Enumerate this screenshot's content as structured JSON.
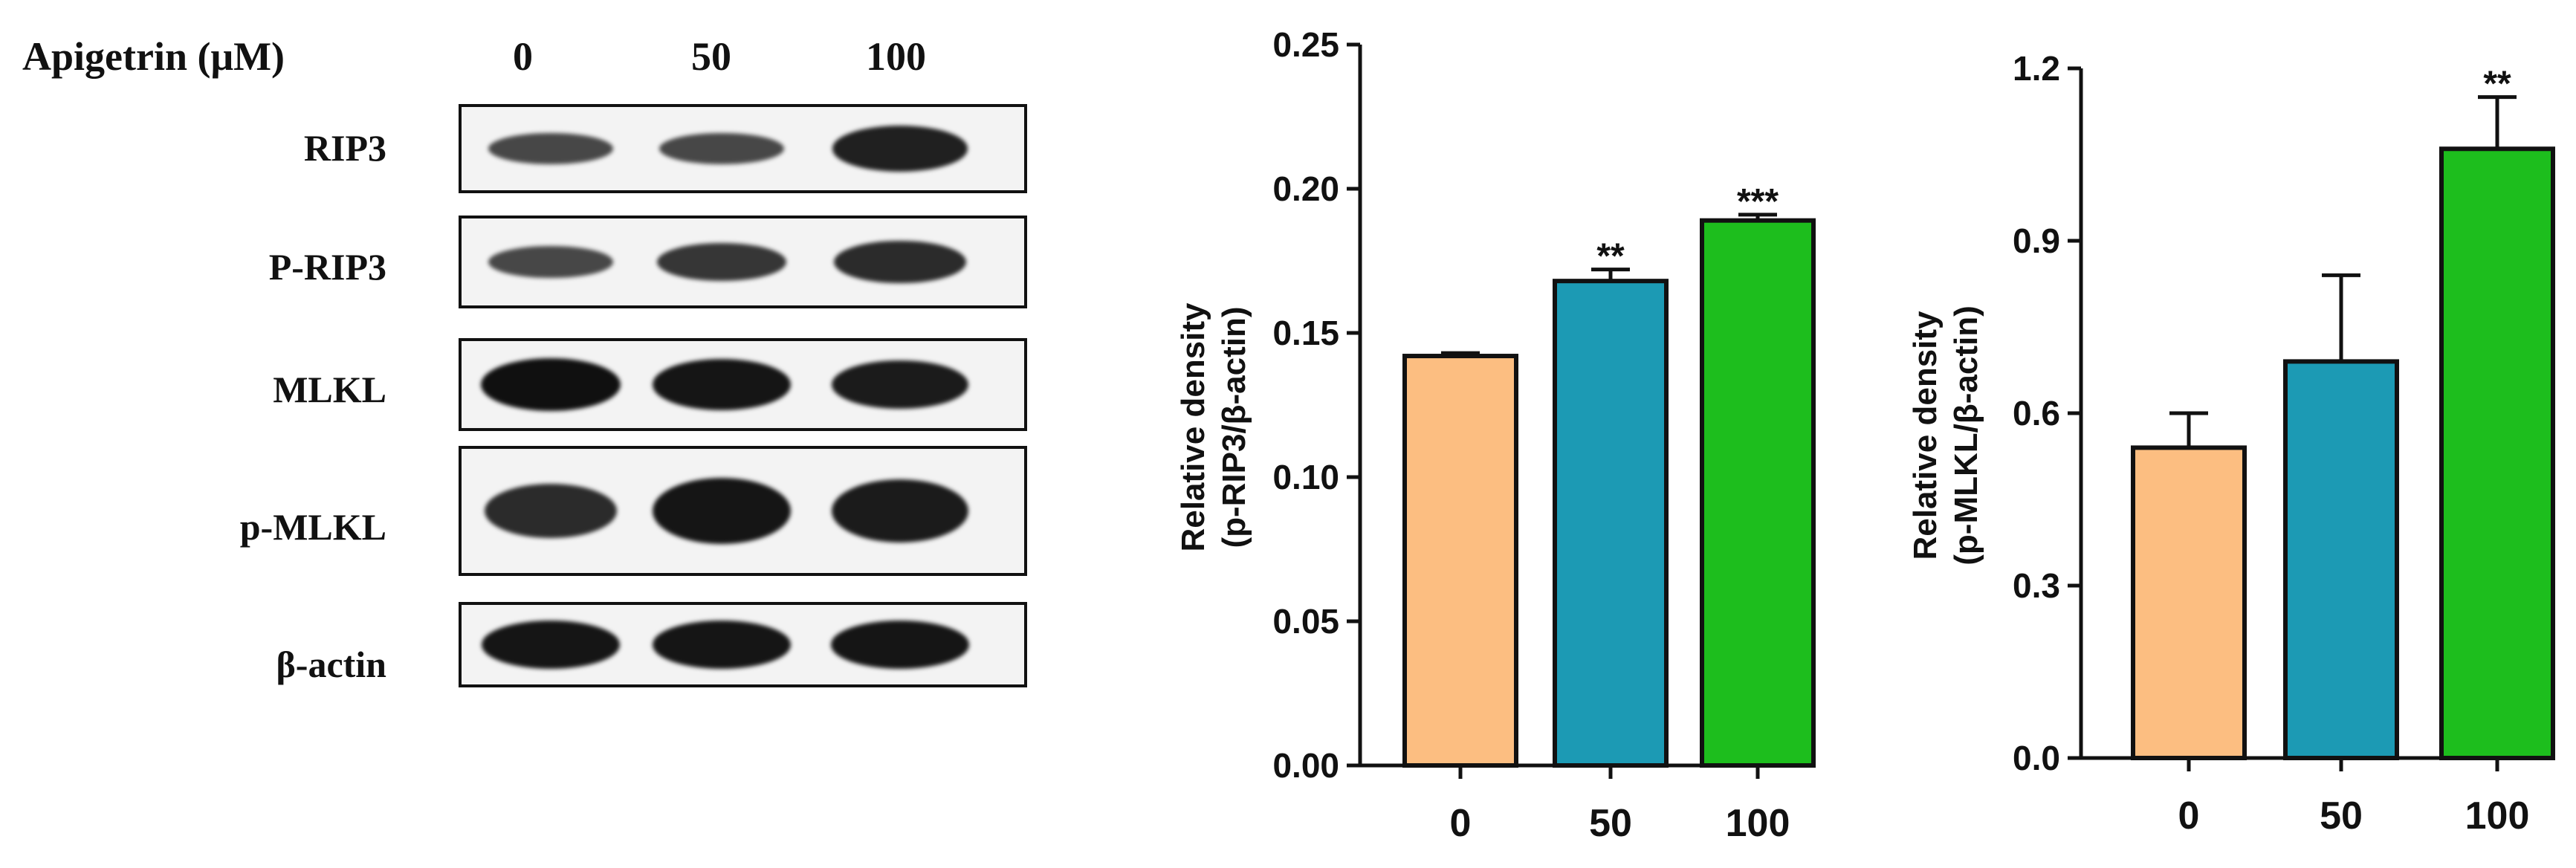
{
  "western_blot": {
    "treatment_label": "Apigetrin (μM)",
    "lane_labels": [
      "0",
      "50",
      "100"
    ],
    "rows": [
      {
        "label": "RIP3",
        "intensities": [
          0.45,
          0.45,
          0.8
        ]
      },
      {
        "label": "P-RIP3",
        "intensities": [
          0.45,
          0.6,
          0.7
        ]
      },
      {
        "label": "MLKL",
        "intensities": [
          0.95,
          0.9,
          0.85
        ]
      },
      {
        "label": "p-MLKL",
        "intensities": [
          0.7,
          0.9,
          0.85
        ]
      },
      {
        "label": "β-actin",
        "intensities": [
          0.9,
          0.9,
          0.9
        ]
      }
    ]
  },
  "colors": {
    "bar_0": "#FCBE81",
    "bar_50": "#1C9AB4",
    "bar_100": "#1DBE1D",
    "axis": "#111111"
  },
  "chart_data": [
    {
      "type": "bar",
      "categories": [
        "0",
        "50",
        "100"
      ],
      "values": [
        0.142,
        0.168,
        0.189
      ],
      "errors": [
        0.001,
        0.004,
        0.002
      ],
      "significance": [
        "",
        "**",
        "***"
      ],
      "ylabel_line1": "Relative density",
      "ylabel_line2": "(p-RIP3/β-actin)",
      "ylim": [
        0,
        0.25
      ],
      "yticks": [
        "0.00",
        "0.05",
        "0.10",
        "0.15",
        "0.20",
        "0.25"
      ],
      "grid": false
    },
    {
      "type": "bar",
      "categories": [
        "0",
        "50",
        "100"
      ],
      "values": [
        0.54,
        0.69,
        1.06
      ],
      "errors": [
        0.06,
        0.15,
        0.09
      ],
      "significance": [
        "",
        "",
        "**"
      ],
      "ylabel_line1": "Relative density",
      "ylabel_line2": "(p-MLKL/β-actin)",
      "ylim": [
        0,
        1.2
      ],
      "yticks": [
        "0.0",
        "0.3",
        "0.6",
        "0.9",
        "1.2"
      ],
      "grid": false
    }
  ]
}
